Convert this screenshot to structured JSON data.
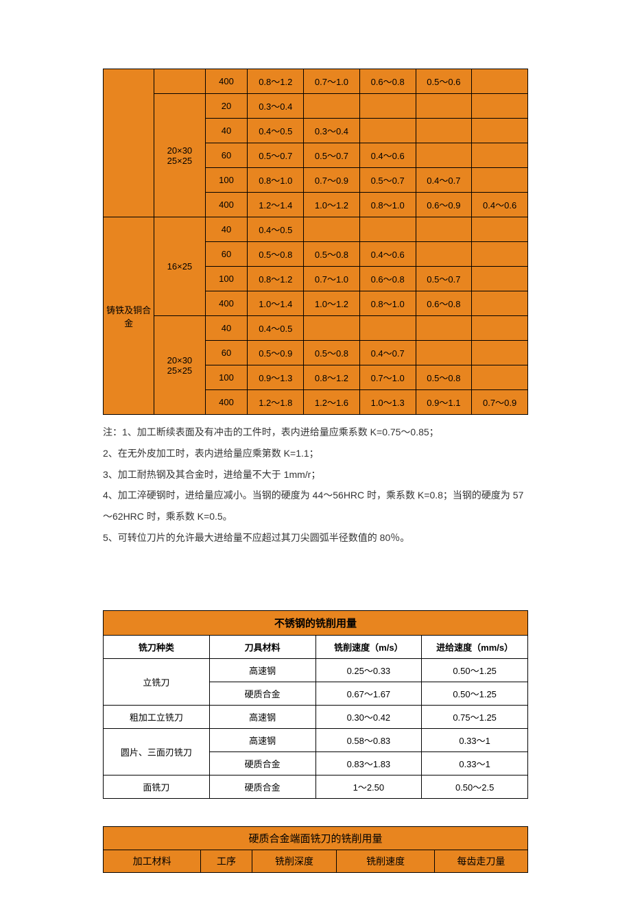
{
  "table1": {
    "material_label": "铸铁及铜合金",
    "group_top_spec": "20×30\n25×25",
    "group_ci_16": "16×25",
    "group_ci_20": "20×30\n25×25",
    "rows_top_400": [
      "400",
      "0.8～1.2",
      "0.7～1.0",
      "0.6～0.8",
      "0.5～0.6",
      ""
    ],
    "rows_top_spec": [
      [
        "20",
        "0.3～0.4",
        "",
        "",
        "",
        ""
      ],
      [
        "40",
        "0.4～0.5",
        "0.3～0.4",
        "",
        "",
        ""
      ],
      [
        "60",
        "0.5～0.7",
        "0.5～0.7",
        "0.4～0.6",
        "",
        ""
      ],
      [
        "100",
        "0.8～1.0",
        "0.7～0.9",
        "0.5～0.7",
        "0.4～0.7",
        ""
      ],
      [
        "400",
        "1.2～1.4",
        "1.0～1.2",
        "0.8～1.0",
        "0.6～0.9",
        "0.4～0.6"
      ]
    ],
    "rows_ci_16": [
      [
        "40",
        "0.4～0.5",
        "",
        "",
        "",
        ""
      ],
      [
        "60",
        "0.5～0.8",
        "0.5～0.8",
        "0.4～0.6",
        "",
        ""
      ],
      [
        "100",
        "0.8～1.2",
        "0.7～1.0",
        "0.6～0.8",
        "0.5～0.7",
        ""
      ],
      [
        "400",
        "1.0～1.4",
        "1.0～1.2",
        "0.8～1.0",
        "0.6～0.8",
        ""
      ]
    ],
    "rows_ci_20": [
      [
        "40",
        "0.4～0.5",
        "",
        "",
        "",
        ""
      ],
      [
        "60",
        "0.5～0.9",
        "0.5～0.8",
        "0.4～0.7",
        "",
        ""
      ],
      [
        "100",
        "0.9～1.3",
        "0.8～1.2",
        "0.7～1.0",
        "0.5～0.8",
        ""
      ],
      [
        "400",
        "1.2～1.8",
        "1.2～1.6",
        "1.0～1.3",
        "0.9～1.1",
        "0.7～0.9"
      ]
    ]
  },
  "notes": {
    "n1": "注：1、加工断续表面及有冲击的工件时，表内进给量应乘系数 K=0.75～0.85；",
    "n2": "2、在无外皮加工时，表内进给量应乘第数 K=1.1；",
    "n3": "3、加工耐热钢及其合金时，进给量不大于 1mm/r；",
    "n4": "4、加工淬硬钢时，进给量应减小。当钢的硬度为 44～56HRC 时，乘系数 K=0.8；当钢的硬度为 57～62HRC 时，乘系数 K=0.5。",
    "n5": "5、可转位刀片的允许最大进给量不应超过其刀尖圆弧半径数值的 80％。"
  },
  "table2": {
    "title": "不锈钢的铣削用量",
    "headers": [
      "铣刀种类",
      "刀具材料",
      "铣削速度（m/s）",
      "进给速度（mm/s）"
    ],
    "rows": [
      {
        "span": 2,
        "name": "立铣刀",
        "sub": [
          [
            "高速钢",
            "0.25～0.33",
            "0.50～1.25"
          ],
          [
            "硬质合金",
            "0.67～1.67",
            "0.50～1.25"
          ]
        ]
      },
      {
        "span": 1,
        "name": "粗加工立铣刀",
        "sub": [
          [
            "高速钢",
            "0.30～0.42",
            "0.75～1.25"
          ]
        ]
      },
      {
        "span": 2,
        "name": "圆片、三面刃铣刀",
        "sub": [
          [
            "高速钢",
            "0.58～0.83",
            "0.33～1"
          ],
          [
            "硬质合金",
            "0.83～1.83",
            "0.33～1"
          ]
        ]
      },
      {
        "span": 1,
        "name": "面铣刀",
        "sub": [
          [
            "硬质合金",
            "1～2.50",
            "0.50～2.5"
          ]
        ]
      }
    ]
  },
  "table3": {
    "title": "硬质合金端面铣刀的铣削用量",
    "headers": [
      "加工材料",
      "工序",
      "铣削深度",
      "铣削速度",
      "每齿走刀量"
    ]
  }
}
